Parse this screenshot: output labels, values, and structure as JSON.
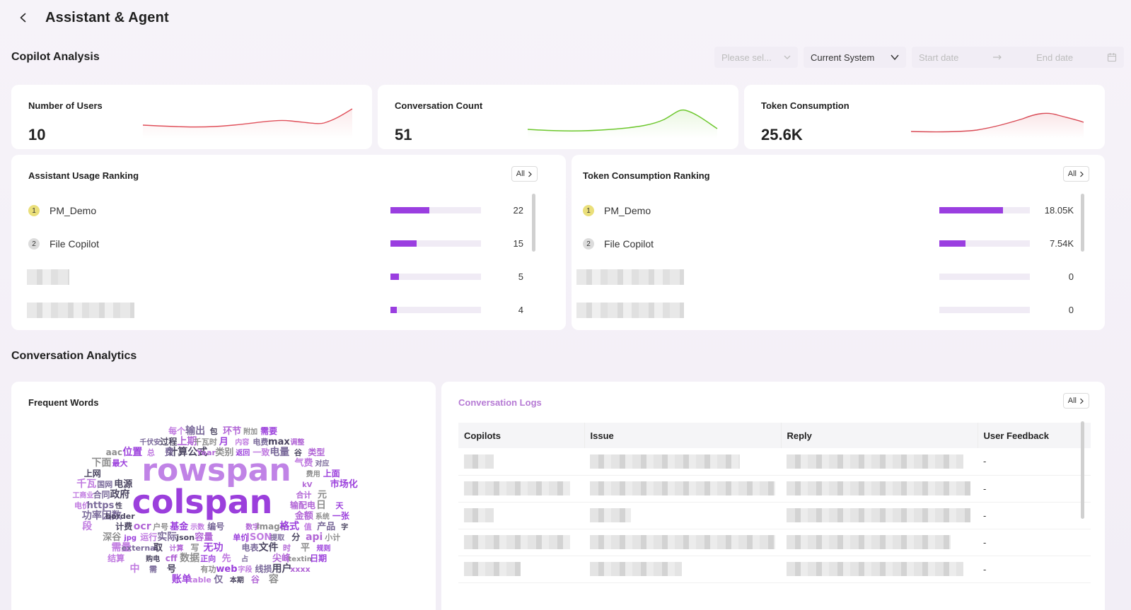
{
  "header": {
    "title": "Assistant & Agent"
  },
  "copilot_analysis": {
    "title": "Copilot Analysis",
    "filters": {
      "select_placeholder": "Please sel...",
      "system": "Current System",
      "start_date": "Start date",
      "end_date": "End date"
    },
    "metrics": [
      {
        "label": "Number of Users",
        "value": "10",
        "color": "#e0505a"
      },
      {
        "label": "Conversation Count",
        "value": "51",
        "color": "#6cc72c"
      },
      {
        "label": "Token Consumption",
        "value": "25.6K",
        "color": "#d94a55"
      }
    ]
  },
  "assistant_ranking": {
    "title": "Assistant Usage Ranking",
    "all_label": "All",
    "items": [
      {
        "rank": "1",
        "name": "PM_Demo",
        "value": "22",
        "fraction": 0.43
      },
      {
        "rank": "2",
        "name": "File Copilot",
        "value": "15",
        "fraction": 0.29
      },
      {
        "rank": "",
        "name": "",
        "value": "5",
        "fraction": 0.09
      },
      {
        "rank": "",
        "name": "",
        "value": "4",
        "fraction": 0.07
      }
    ]
  },
  "token_ranking": {
    "title": "Token Consumption Ranking",
    "all_label": "All",
    "items": [
      {
        "rank": "1",
        "name": "PM_Demo",
        "value": "18.05K",
        "fraction": 0.7
      },
      {
        "rank": "2",
        "name": "File Copilot",
        "value": "7.54K",
        "fraction": 0.29
      },
      {
        "rank": "",
        "name": "",
        "value": "0",
        "fraction": 0
      },
      {
        "rank": "",
        "name": "",
        "value": "0",
        "fraction": 0
      }
    ]
  },
  "conversation_analytics": {
    "title": "Conversation Analytics",
    "frequent_words": {
      "title": "Frequent Words",
      "words": [
        "rowspan",
        "colspan",
        "电费",
        "计算公式",
        "类型",
        "费用",
        "市场化",
        "电价",
        "功率因数",
        "计费",
        "数字",
        "深谷",
        "单价",
        "需量",
        "电表",
        "购电",
        "尖峰",
        "有功",
        "账单",
        "每个",
        "千伏安",
        "max",
        "Year",
        "下面",
        "上面",
        "工商业",
        "https",
        "border",
        "ocr",
        "image",
        "jpg",
        "JSON",
        "external",
        "文件",
        "cff",
        "textin",
        "web",
        "table",
        "输出",
        "过程",
        "调整",
        "类别",
        "最大",
        "千瓦",
        "合同",
        "性",
        "金额",
        "户号",
        "格式",
        "运行",
        "提取",
        "取",
        "时",
        "数据",
        "日期",
        "字段",
        "仅",
        "包",
        "上期",
        "aac",
        "返回",
        "气费",
        "国网",
        "政府",
        "输配电",
        "系统",
        "基金",
        "值",
        "实际",
        "分",
        "计算",
        "平",
        "正向",
        "中",
        "线损",
        "本期",
        "环节",
        "千瓦时",
        "位置",
        "一致",
        "对应",
        "电源",
        "合计",
        "日",
        "一张",
        "示数",
        "产品",
        "json",
        "api",
        "写",
        "规则",
        "先",
        "需",
        "用户",
        "谷",
        "附加",
        "月",
        "总",
        "电量",
        "上网",
        "kV",
        "元",
        "天",
        "段",
        "编号",
        "字",
        "容量",
        "小计",
        "无功",
        "结算",
        "占",
        "号",
        "xxxx",
        "容",
        "需要",
        "内容",
        "费",
        "谷"
      ]
    },
    "logs": {
      "title": "Conversation Logs",
      "all_label": "All",
      "columns": [
        "Copilots",
        "Issue",
        "Reply",
        "User Feedback"
      ],
      "rows": [
        {
          "feedback": "-"
        },
        {
          "feedback": "-"
        },
        {
          "feedback": "-"
        },
        {
          "feedback": "-"
        },
        {
          "feedback": "-"
        }
      ]
    }
  }
}
